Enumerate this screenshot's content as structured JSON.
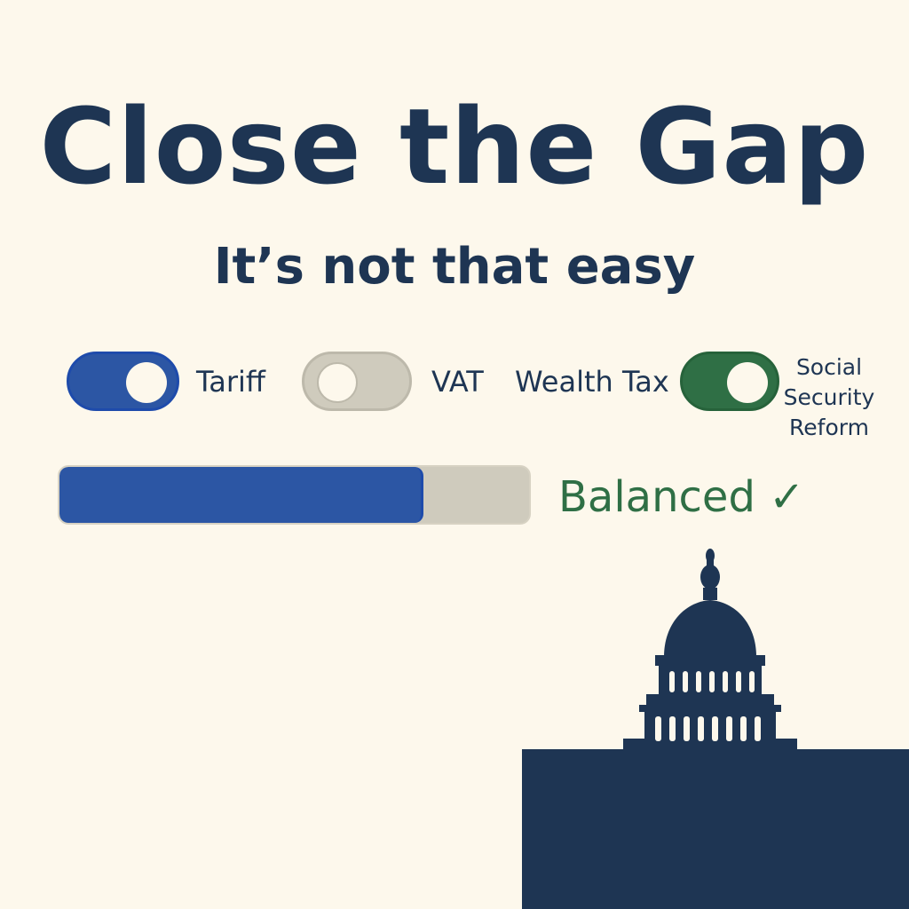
{
  "title": "Close the Gap",
  "subtitle": "It’s not that easy",
  "toggles": [
    {
      "label": "Tariff",
      "state": "on",
      "color": "#2c56a4"
    },
    {
      "label": "VAT",
      "state": "off",
      "color": "#cfcbbd"
    },
    {
      "label": "Wealth Tax",
      "state": "label-only"
    },
    {
      "label": "Social Security Reform",
      "state": "on",
      "color": "#2f6f45"
    }
  ],
  "progress": {
    "value": 0.77,
    "fill_color": "#2c56a4",
    "track_color": "#cfcbbd"
  },
  "status": {
    "text": "Balanced ✓",
    "color": "#2f6f45"
  },
  "illustration": {
    "icon": "capitol-building-icon",
    "color": "#1e3553"
  },
  "colors": {
    "background": "#fdf8ec",
    "text": "#1e3553"
  }
}
